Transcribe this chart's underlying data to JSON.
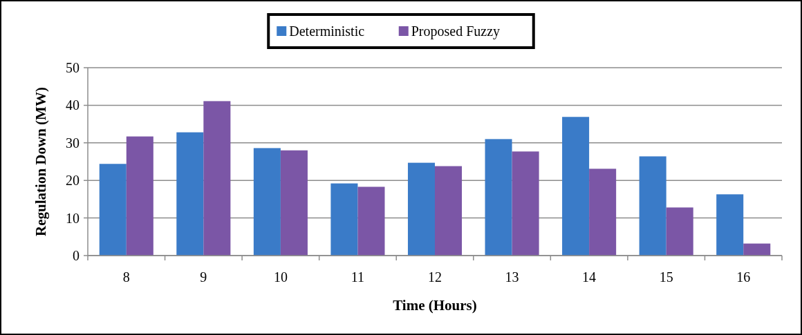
{
  "chart_data": {
    "type": "bar",
    "xlabel": "Time (Hours)",
    "ylabel": "Regulation Down (MW)",
    "categories": [
      "8",
      "9",
      "10",
      "11",
      "12",
      "13",
      "14",
      "15",
      "16"
    ],
    "series": [
      {
        "name": "Deterministic",
        "color": "#3a7bc8",
        "values": [
          24.4,
          32.8,
          28.6,
          19.2,
          24.7,
          31.0,
          36.9,
          26.4,
          16.3
        ]
      },
      {
        "name": "Proposed Fuzzy",
        "color": "#7b56a6",
        "values": [
          31.7,
          41.1,
          28.0,
          18.3,
          23.8,
          27.7,
          23.1,
          12.8,
          3.2
        ]
      }
    ],
    "ylim": [
      0,
      50
    ],
    "yticks": [
      0,
      10,
      20,
      30,
      40,
      50
    ],
    "grid": "y",
    "legend": "top"
  }
}
